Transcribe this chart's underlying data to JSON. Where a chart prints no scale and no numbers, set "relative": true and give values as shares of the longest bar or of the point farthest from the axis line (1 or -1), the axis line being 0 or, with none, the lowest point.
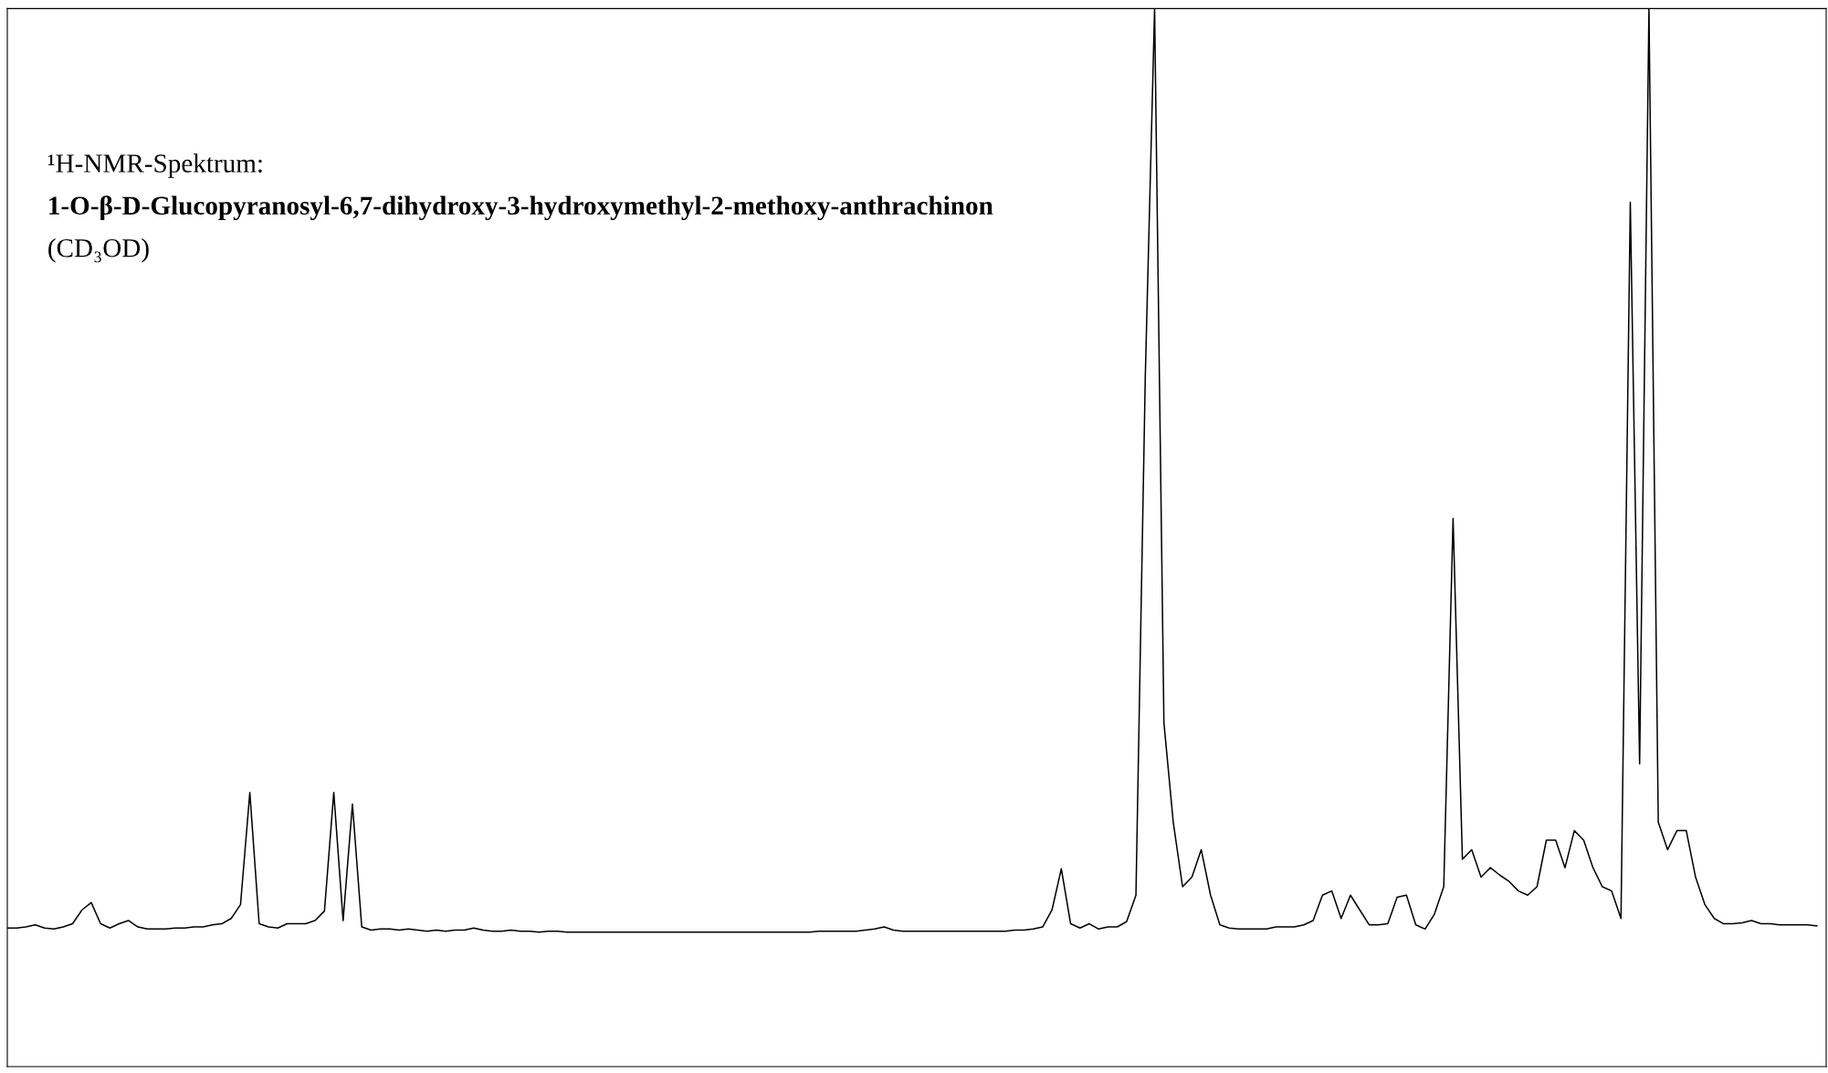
{
  "chart_data": {
    "type": "line",
    "title": "¹H-NMR-Spektrum:",
    "subtitle": "1-O-β-D-Glucopyranosyl-6,7-dihydroxy-3-hydroxymethyl-2-methoxy-anthrachinon",
    "annotations": [
      "(CD₃OD)"
    ],
    "relative": true,
    "categories": [
      null,
      null,
      null,
      null,
      null,
      null,
      null,
      null,
      null,
      null,
      null,
      null,
      null,
      null,
      null,
      null,
      null,
      null,
      null,
      null,
      null,
      null,
      null,
      null,
      null,
      null,
      null,
      null,
      null,
      null,
      null,
      null,
      null,
      null,
      null,
      null,
      null,
      null,
      null,
      null,
      null,
      null,
      null,
      null,
      null,
      null,
      null,
      null,
      null,
      null,
      null,
      null,
      null,
      null,
      null,
      null,
      null,
      null,
      null,
      null,
      null,
      null,
      null,
      null,
      null,
      null,
      null,
      null,
      null,
      null,
      null,
      null,
      null,
      null,
      null,
      null,
      null,
      null,
      null,
      null,
      null,
      null,
      null,
      null,
      null,
      null,
      null,
      null,
      null,
      null,
      null,
      null,
      null,
      null,
      null,
      null,
      null,
      null,
      null,
      null,
      null,
      null,
      null,
      null,
      null,
      null,
      null,
      null,
      null,
      null,
      null,
      null,
      null,
      null,
      null,
      null,
      null,
      null,
      null,
      null,
      null,
      null,
      null,
      null,
      null,
      null,
      null,
      null,
      null,
      null,
      null,
      null,
      null,
      null,
      null,
      null,
      null,
      null,
      null,
      null,
      null,
      null,
      null,
      null,
      null,
      null,
      null,
      null,
      null,
      null,
      null,
      null,
      null,
      null,
      null,
      null,
      null,
      null,
      null,
      null,
      null,
      null,
      null,
      null,
      null,
      null,
      null,
      null,
      null,
      null,
      null,
      null,
      null,
      null,
      null,
      null,
      null,
      null,
      null,
      null,
      null,
      null,
      null,
      null,
      null,
      null,
      null,
      null,
      null,
      null,
      null,
      null,
      null,
      null,
      null
    ],
    "series": [
      {
        "color": "#000000",
        "values": [
          0.131,
          0.131,
          0.132,
          0.134,
          0.131,
          0.13,
          0.132,
          0.135,
          0.148,
          0.155,
          0.135,
          0.131,
          0.135,
          0.138,
          0.132,
          0.13,
          0.13,
          0.13,
          0.131,
          0.131,
          0.132,
          0.132,
          0.134,
          0.135,
          0.14,
          0.153,
          0.259,
          0.135,
          0.132,
          0.131,
          0.135,
          0.135,
          0.135,
          0.138,
          0.147,
          0.259,
          0.138,
          0.248,
          0.132,
          0.129,
          0.13,
          0.13,
          0.129,
          0.13,
          0.129,
          0.128,
          0.129,
          0.128,
          0.129,
          0.129,
          0.131,
          0.129,
          0.128,
          0.128,
          0.129,
          0.128,
          0.128,
          0.127,
          0.128,
          0.128,
          0.127,
          0.127,
          0.127,
          0.127,
          0.127,
          0.127,
          0.127,
          0.127,
          0.127,
          0.127,
          0.127,
          0.127,
          0.127,
          0.127,
          0.127,
          0.127,
          0.127,
          0.127,
          0.127,
          0.127,
          0.127,
          0.127,
          0.127,
          0.127,
          0.127,
          0.127,
          0.127,
          0.128,
          0.128,
          0.128,
          0.128,
          0.128,
          0.129,
          0.13,
          0.132,
          0.129,
          0.128,
          0.128,
          0.128,
          0.128,
          0.128,
          0.128,
          0.128,
          0.128,
          0.128,
          0.128,
          0.128,
          0.128,
          0.129,
          0.129,
          0.13,
          0.132,
          0.148,
          0.187,
          0.135,
          0.131,
          0.135,
          0.13,
          0.132,
          0.132,
          0.137,
          0.162,
          0.651,
          1,
          0.325,
          0.231,
          0.17,
          0.179,
          0.205,
          0.162,
          0.134,
          0.131,
          0.13,
          0.13,
          0.13,
          0.13,
          0.132,
          0.132,
          0.132,
          0.134,
          0.138,
          0.162,
          0.166,
          0.14,
          0.162,
          0.148,
          0.134,
          0.134,
          0.135,
          0.16,
          0.162,
          0.134,
          0.13,
          0.144,
          0.17,
          0.518,
          0.196,
          0.205,
          0.179,
          0.188,
          0.181,
          0.175,
          0.166,
          0.162,
          0.17,
          0.214,
          0.214,
          0.188,
          0.223,
          0.214,
          0.188,
          0.17,
          0.166,
          0.14,
          0.817,
          0.286,
          1,
          0.231,
          0.205,
          0.223,
          0.223,
          0.179,
          0.153,
          0.14,
          0.135,
          0.135,
          0.136,
          0.138,
          0.135,
          0.135,
          0.134,
          0.134,
          0.134,
          0.134,
          0.133
        ]
      }
    ]
  }
}
